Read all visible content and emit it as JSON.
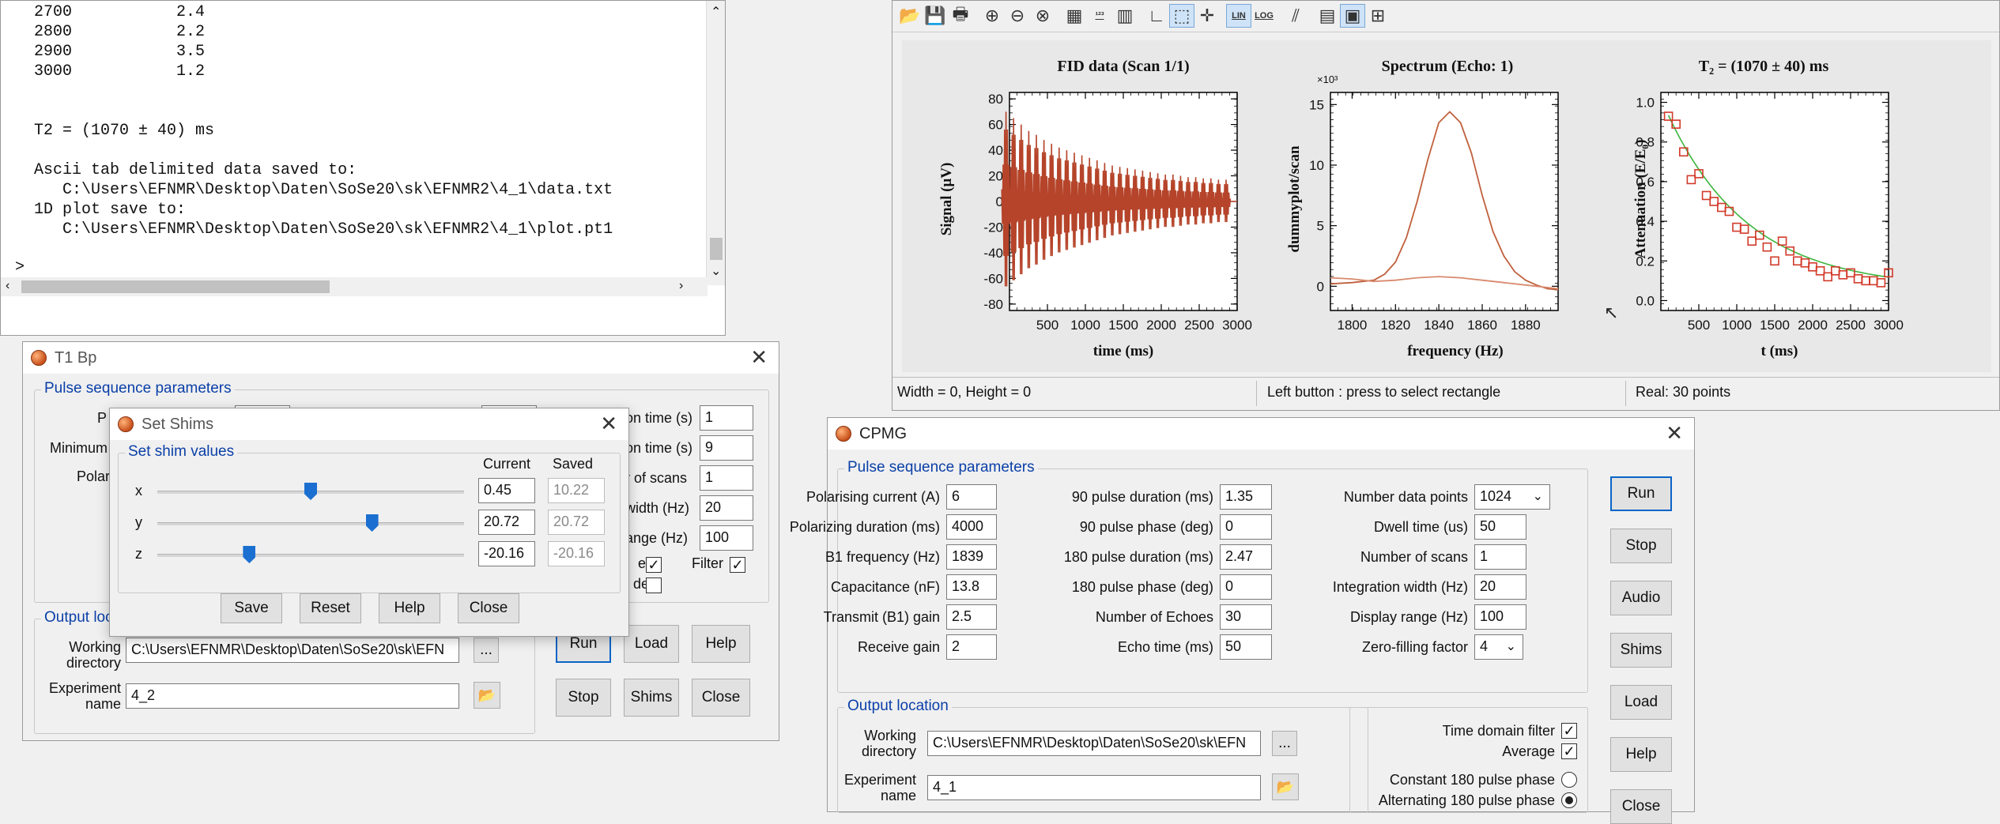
{
  "console": {
    "lines": [
      "  2700           2.4",
      "  2800           2.2",
      "  2900           3.5",
      "  3000           1.2",
      "",
      "",
      "  T2 = (1070 ± 40) ms",
      "",
      "  Ascii tab delimited data saved to:",
      "     C:\\Users\\EFNMR\\Desktop\\Daten\\SoSe20\\sk\\EFNMR2\\4_1\\data.txt",
      "  1D plot save to:",
      "     C:\\Users\\EFNMR\\Desktop\\Daten\\SoSe20\\sk\\EFNMR2\\4_1\\plot.pt1"
    ],
    "prompt": ">"
  },
  "plot_window": {
    "toolbar": [
      "open-icon",
      "save-icon",
      "print-icon",
      "zoom-in-icon",
      "zoom-out-icon",
      "zoom-reset-icon",
      "markers-icon",
      "numbers-icon",
      "colors-icon",
      "axes-icon",
      "select-rect-icon",
      "crosshair-icon",
      "lin-icon",
      "log-icon",
      "fit-icon",
      "table-icon",
      "layout-icon",
      "grid-icon"
    ],
    "lin_label": "LIN",
    "log_label": "LOG",
    "plot1": {
      "title": "FID data (Scan 1/1)",
      "xlabel": "time (ms)",
      "ylabel": "Signal (μV)"
    },
    "plot2": {
      "title": "Spectrum (Echo: 1)",
      "xlabel": "frequency (Hz)",
      "ylabel": "dummyplot/scan",
      "multiplier": "×10³"
    },
    "plot3": {
      "title": "T₂ = (1070 ± 40) ms",
      "xlabel": "t (ms)",
      "ylabel": "Attenuation (E/E₀)"
    },
    "status": {
      "size": "Width =  0, Height =  0",
      "hint": "Left button : press to select rectangle",
      "points": "Real: 30 points"
    }
  },
  "chart_data": [
    {
      "type": "line",
      "title": "FID data (Scan 1/1)",
      "xlabel": "time (ms)",
      "ylabel": "Signal (μV)",
      "xlim": [
        0,
        3000
      ],
      "ylim": [
        -85,
        85
      ],
      "x_ticks": [
        500,
        1000,
        1500,
        2000,
        2500,
        3000
      ],
      "y_ticks": [
        -80,
        -60,
        -40,
        -20,
        0,
        20,
        40,
        60,
        80
      ],
      "series": [
        {
          "echo_times": [
            100,
            200,
            300,
            400,
            500,
            600,
            700,
            800,
            900,
            1000,
            1100,
            1200,
            1300,
            1400,
            1500,
            1600,
            1700,
            1800,
            1900,
            2000,
            2100,
            2200,
            2300,
            2400,
            2500,
            2600,
            2700,
            2800,
            2900,
            3000
          ],
          "echo_amplitudes": [
            70,
            65,
            60,
            55,
            52,
            48,
            45,
            42,
            40,
            38,
            36,
            34,
            32,
            30,
            28,
            27,
            26,
            25,
            24,
            23,
            22,
            21,
            21,
            20,
            19,
            19,
            18,
            18,
            17,
            17
          ]
        }
      ]
    },
    {
      "type": "line",
      "title": "Spectrum (Echo: 1)",
      "xlabel": "frequency (Hz)",
      "ylabel": "dummyplot/scan",
      "xlim": [
        1790,
        1895
      ],
      "ylim": [
        -2,
        16
      ],
      "y_multiplier": "×10³",
      "x_ticks": [
        1800,
        1820,
        1840,
        1860,
        1880
      ],
      "y_ticks": [
        0,
        5,
        10,
        15
      ],
      "series": [
        {
          "x": [
            1790,
            1800,
            1810,
            1815,
            1820,
            1825,
            1830,
            1835,
            1840,
            1845,
            1850,
            1855,
            1860,
            1865,
            1870,
            1875,
            1880,
            1885,
            1890,
            1895
          ],
          "y": [
            0.2,
            0.3,
            0.5,
            1.0,
            2.0,
            4.0,
            7.0,
            10.5,
            13.5,
            14.4,
            13.5,
            11.0,
            7.5,
            4.5,
            2.5,
            1.2,
            0.5,
            0.1,
            -0.2,
            -0.3
          ]
        },
        {
          "x": [
            1790,
            1800,
            1810,
            1820,
            1830,
            1840,
            1850,
            1860,
            1870,
            1880,
            1890,
            1895
          ],
          "y": [
            0.7,
            0.6,
            0.4,
            0.5,
            0.7,
            0.8,
            0.7,
            0.5,
            0.3,
            0.1,
            -0.1,
            -0.2
          ]
        }
      ]
    },
    {
      "type": "scatter",
      "title": "T₂ = (1070 ± 40) ms",
      "xlabel": "t (ms)",
      "ylabel": "Attenuation (E/E₀)",
      "xlim": [
        0,
        3000
      ],
      "ylim": [
        -0.05,
        1.05
      ],
      "x_ticks": [
        500,
        1000,
        1500,
        2000,
        2500,
        3000
      ],
      "y_ticks": [
        0.0,
        0.2,
        0.4,
        0.6,
        0.8,
        1.0
      ],
      "series": [
        {
          "name": "data",
          "x": [
            100,
            200,
            300,
            400,
            500,
            600,
            700,
            800,
            900,
            1000,
            1100,
            1200,
            1300,
            1400,
            1500,
            1600,
            1700,
            1800,
            1900,
            2000,
            2100,
            2200,
            2300,
            2400,
            2500,
            2600,
            2700,
            2800,
            2900,
            3000
          ],
          "y": [
            0.93,
            0.89,
            0.75,
            0.61,
            0.64,
            0.53,
            0.5,
            0.47,
            0.45,
            0.37,
            0.36,
            0.3,
            0.33,
            0.27,
            0.2,
            0.3,
            0.25,
            0.2,
            0.19,
            0.17,
            0.15,
            0.12,
            0.15,
            0.13,
            0.14,
            0.11,
            0.1,
            0.1,
            0.09,
            0.14
          ]
        },
        {
          "name": "fit",
          "T2_ms": 1070,
          "amplitude": 0.96,
          "offset": 0.06
        }
      ]
    }
  ],
  "t1": {
    "title": "T1 Bp",
    "group_pulse": "Pulse sequence parameters",
    "labels": {
      "p": "P",
      "minimum": "Minimum",
      "polar": "Polar"
    },
    "right_labels": [
      "on time (s)",
      "on time (s)",
      "r of scans",
      "width (Hz)",
      "ange (Hz)"
    ],
    "right_values": [
      "1",
      "9",
      "1",
      "20",
      "100"
    ],
    "e_label": "e",
    "filter_label": "Filter",
    "de_label": "de",
    "group_output": "Output loc",
    "working_dir_label": "Working\ndirectory",
    "working_dir": "C:\\Users\\EFNMR\\Desktop\\Daten\\SoSe20\\sk\\EFN",
    "browse": "...",
    "exp_label": "Experiment\nname",
    "exp_name": "4_2",
    "buttons": {
      "run": "Run",
      "load": "Load",
      "help": "Help",
      "stop": "Stop",
      "shims": "Shims",
      "close": "Close"
    }
  },
  "shims": {
    "title": "Set Shims",
    "group": "Set shim values",
    "col_current": "Current",
    "col_saved": "Saved",
    "rows": [
      {
        "axis": "x",
        "current": "0.45",
        "saved": "10.22",
        "level": 0.5
      },
      {
        "axis": "y",
        "current": "20.72",
        "saved": "20.72",
        "level": 0.7
      },
      {
        "axis": "z",
        "current": "-20.16",
        "saved": "-20.16",
        "level": 0.3
      }
    ],
    "buttons": {
      "save": "Save",
      "reset": "Reset",
      "help": "Help",
      "close": "Close"
    }
  },
  "cpmg": {
    "title": "CPMG",
    "group_pulse": "Pulse sequence parameters",
    "col1": [
      {
        "label": "Polarising current (A)",
        "value": "6"
      },
      {
        "label": "Polarizing duration (ms)",
        "value": "4000"
      },
      {
        "label": "B1 frequency (Hz)",
        "value": "1839"
      },
      {
        "label": "Capacitance (nF)",
        "value": "13.8"
      },
      {
        "label": "Transmit (B1) gain",
        "value": "2.5"
      },
      {
        "label": "Receive gain",
        "value": "2"
      }
    ],
    "col2": [
      {
        "label": "90 pulse duration (ms)",
        "value": "1.35"
      },
      {
        "label": "90 pulse phase (deg)",
        "value": "0"
      },
      {
        "label": "180 pulse duration (ms)",
        "value": "2.47"
      },
      {
        "label": "180 pulse phase (deg)",
        "value": "0"
      },
      {
        "label": "Number of Echoes",
        "value": "30"
      },
      {
        "label": "Echo time (ms)",
        "value": "50"
      }
    ],
    "col3": [
      {
        "label": "Number data points",
        "value": "1024"
      },
      {
        "label": "Dwell time (us)",
        "value": "50"
      },
      {
        "label": "Number of scans",
        "value": "1"
      },
      {
        "label": "Integration width (Hz)",
        "value": "20"
      },
      {
        "label": "Display range (Hz)",
        "value": "100"
      },
      {
        "label": "Zero-filling factor",
        "value": "4"
      }
    ],
    "group_output": "Output location",
    "working_dir_label": "Working\ndirectory",
    "working_dir": "C:\\Users\\EFNMR\\Desktop\\Daten\\SoSe20\\sk\\EFN",
    "browse": "...",
    "exp_label": "Experiment\nname",
    "exp_name": "4_1",
    "options": {
      "time_filter": "Time domain filter",
      "average": "Average",
      "constant": "Constant 180 pulse phase",
      "alternating": "Alternating 180 pulse phase"
    },
    "buttons": {
      "run": "Run",
      "stop": "Stop",
      "audio": "Audio",
      "shims": "Shims",
      "load": "Load",
      "help": "Help",
      "close": "Close"
    }
  }
}
